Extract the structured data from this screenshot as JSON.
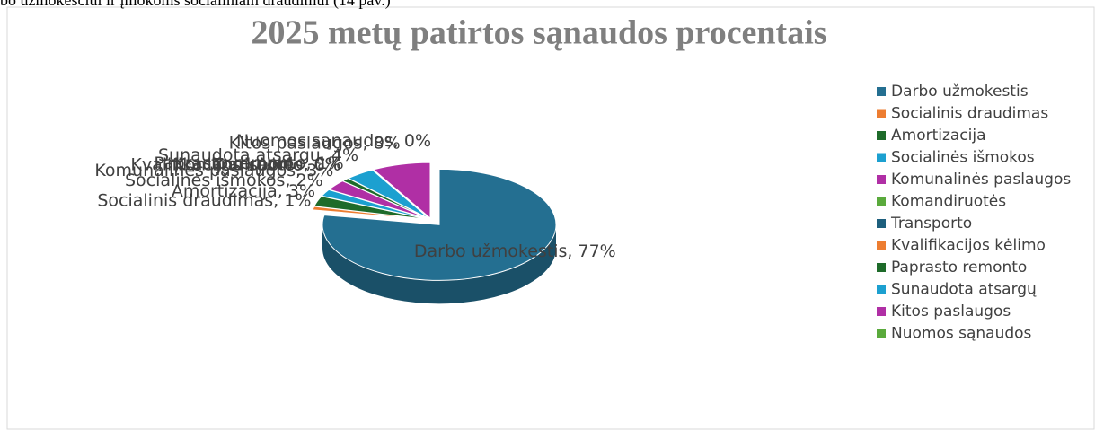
{
  "caption": "bo užmokesčiui ir įmokoms socialiniam draudimui (14 pav.)",
  "chart_data": {
    "type": "pie",
    "title": "2025 metų patirtos sąnaudos procentais",
    "categories": [
      "Darbo užmokestis",
      "Socialinis draudimas",
      "Amortizacija",
      "Socialinės išmokos",
      "Komunalinės paslaugos",
      "Komandiruotės",
      "Transporto",
      "Kvalifikacijos kėlimo",
      "Paprasto remonto",
      "Sunaudota atsargų",
      "Kitos paslaugos",
      "Nuomos sąnaudos"
    ],
    "values": [
      77,
      1,
      3,
      2,
      3,
      0,
      0,
      0,
      1,
      4,
      8,
      0
    ],
    "value_labels": [
      "Darbo užmokestis, 77%",
      "Socialinis draudimas, 1%",
      "Amortizacija, 3%",
      "Socialinės išmokos, 2%",
      "Komunalinės paslaugos, 3%",
      "Komandiruotės, 0%",
      "Transporto, 0%",
      "Kvalifikacijos kėlimo, 0%",
      "Paprasto remonto, 1%",
      "Sunaudota atsargų, 4%",
      "Kitos paslaugos, 8%",
      "Nuomos sąnaudos, 0%"
    ],
    "colors": [
      "#246f91",
      "#ed7d31",
      "#1e6b2a",
      "#1ca0d0",
      "#b02fa5",
      "#5aaa3c",
      "#1d5f7d",
      "#ed7d31",
      "#1e6b2a",
      "#1ca0d0",
      "#b02fa5",
      "#5aaa3c"
    ],
    "legend": "right"
  }
}
